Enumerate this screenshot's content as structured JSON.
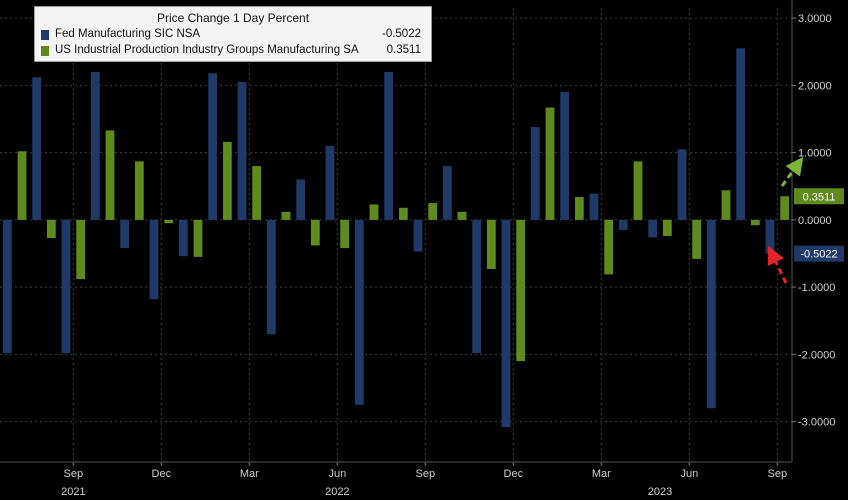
{
  "legend": {
    "title": "Price Change 1 Day Percent",
    "items": [
      {
        "name": "Fed Manufacturing SIC NSA",
        "value": "-0.5022",
        "color": "#1f3a68"
      },
      {
        "name": "US Industrial Production Industry Groups Manufacturing SA",
        "value": "0.3511",
        "color": "#5f8a1c"
      }
    ]
  },
  "chart_data": {
    "type": "bar",
    "title": "Price Change 1 Day Percent",
    "ylim": [
      -3.6,
      3.15
    ],
    "yticks": [
      {
        "value": 3,
        "label": "3.0000"
      },
      {
        "value": 2,
        "label": "2.0000"
      },
      {
        "value": 1,
        "label": "1.0000"
      },
      {
        "value": 0,
        "label": "0.0000"
      },
      {
        "value": -1,
        "label": "-1.0000"
      },
      {
        "value": -2,
        "label": "-2.0000"
      },
      {
        "value": -3,
        "label": "-3.0000"
      }
    ],
    "grid": true,
    "legend_position": "top-left",
    "x_index_range": [
      0,
      27
    ],
    "xticks": [
      {
        "index": 2.5,
        "label": "Sep"
      },
      {
        "index": 5.5,
        "label": "Dec"
      },
      {
        "index": 8.5,
        "label": "Mar"
      },
      {
        "index": 11.5,
        "label": "Jun"
      },
      {
        "index": 14.5,
        "label": "Sep"
      },
      {
        "index": 17.5,
        "label": "Dec"
      },
      {
        "index": 20.5,
        "label": "Mar"
      },
      {
        "index": 23.5,
        "label": "Jun"
      },
      {
        "index": 26.5,
        "label": "Sep"
      }
    ],
    "years": [
      {
        "index": 2.5,
        "label": "2021"
      },
      {
        "index": 11.5,
        "label": "2022"
      },
      {
        "index": 22.5,
        "label": "2023"
      }
    ],
    "series": [
      {
        "name": "Fed Manufacturing SIC NSA",
        "color": "#1f3a68",
        "values": [
          -1.98,
          2.12,
          -1.98,
          2.2,
          -0.42,
          -1.18,
          -0.54,
          2.18,
          2.05,
          -1.7,
          0.6,
          1.1,
          -2.75,
          2.2,
          -0.47,
          0.8,
          -1.98,
          -3.08,
          1.38,
          1.9,
          0.39,
          -0.15,
          -0.26,
          1.05,
          -2.8,
          2.55,
          -0.5022
        ]
      },
      {
        "name": "US Industrial Production Industry Groups Manufacturing SA",
        "color": "#5f8a1c",
        "values": [
          1.02,
          -0.27,
          -0.88,
          1.33,
          0.87,
          -0.05,
          -0.55,
          1.16,
          0.8,
          0.12,
          -0.38,
          -0.42,
          0.23,
          0.18,
          0.25,
          0.12,
          -0.73,
          -2.1,
          1.67,
          0.34,
          -0.81,
          0.87,
          -0.24,
          -0.58,
          0.44,
          -0.08,
          0.3511
        ]
      }
    ],
    "last_value_labels": [
      {
        "value": 0.3511,
        "label": "0.3511",
        "color": "#5f8a1c"
      },
      {
        "value": -0.5022,
        "label": "-0.5022",
        "color": "#1f3a68"
      }
    ]
  }
}
